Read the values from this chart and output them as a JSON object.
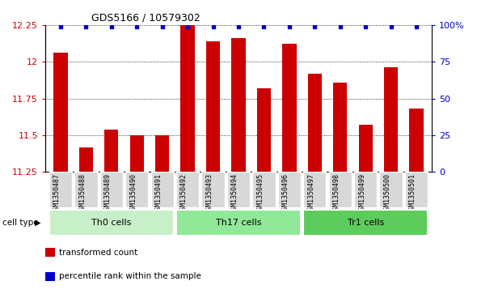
{
  "title": "GDS5166 / 10579302",
  "samples": [
    "GSM1350487",
    "GSM1350488",
    "GSM1350489",
    "GSM1350490",
    "GSM1350491",
    "GSM1350492",
    "GSM1350493",
    "GSM1350494",
    "GSM1350495",
    "GSM1350496",
    "GSM1350497",
    "GSM1350498",
    "GSM1350499",
    "GSM1350500",
    "GSM1350501"
  ],
  "red_values": [
    12.06,
    11.42,
    11.54,
    11.5,
    11.5,
    12.25,
    12.14,
    12.16,
    11.82,
    12.12,
    11.92,
    11.86,
    11.57,
    11.96,
    11.68
  ],
  "blue_display": [
    true,
    true,
    true,
    true,
    true,
    true,
    true,
    true,
    true,
    true,
    true,
    true,
    true,
    true,
    true
  ],
  "cell_groups": [
    {
      "label": "Th0 cells",
      "start": 0,
      "end": 5,
      "color": "#c8f0c8"
    },
    {
      "label": "Th17 cells",
      "start": 5,
      "end": 10,
      "color": "#90e898"
    },
    {
      "label": "Tr1 cells",
      "start": 10,
      "end": 15,
      "color": "#5ccc5c"
    }
  ],
  "ylim": [
    11.25,
    12.25
  ],
  "yticks": [
    11.25,
    11.5,
    11.75,
    12.0,
    12.25
  ],
  "ytick_labels": [
    "11.25",
    "11.5",
    "11.75",
    "12",
    "12.25"
  ],
  "right_yticks": [
    0,
    25,
    50,
    75,
    100
  ],
  "right_ytick_labels": [
    "0",
    "25",
    "50",
    "75",
    "100%"
  ],
  "bar_color": "#cc0000",
  "dot_color": "#0000cc",
  "plot_bg": "#ffffff",
  "gray_box": "#d8d8d8",
  "legend_items": [
    {
      "label": "transformed count",
      "color": "#cc0000"
    },
    {
      "label": "percentile rank within the sample",
      "color": "#0000cc"
    }
  ],
  "cell_type_label": "cell type"
}
